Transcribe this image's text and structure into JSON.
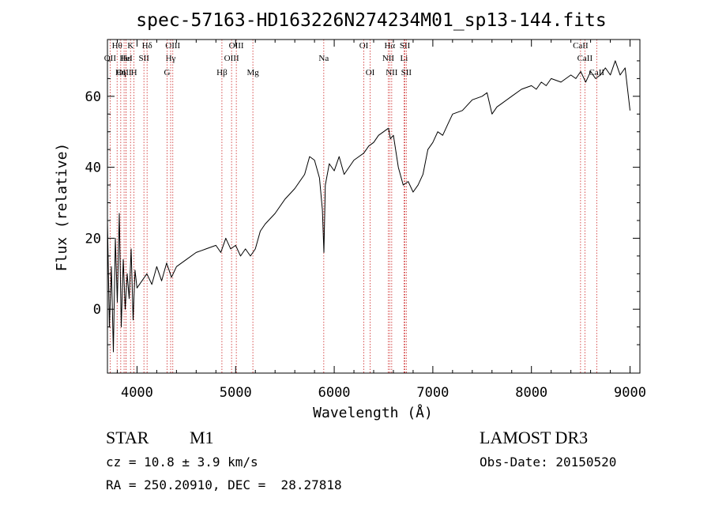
{
  "chart_data": {
    "type": "line",
    "title": "spec-57163-HD163226N274234M01_sp13-144.fits",
    "xlabel": "Wavelength (Å)",
    "ylabel": "Flux (relative)",
    "xlim": [
      3700,
      9100
    ],
    "ylim": [
      -18,
      76
    ],
    "x_ticks": [
      4000,
      5000,
      6000,
      7000,
      8000,
      9000
    ],
    "y_ticks": [
      0,
      20,
      40,
      60
    ],
    "grid": false,
    "series": [
      {
        "x": [
          3700,
          3720,
          3740,
          3760,
          3780,
          3800,
          3820,
          3840,
          3860,
          3880,
          3900,
          3920,
          3940,
          3960,
          3980,
          4000,
          4050,
          4100,
          4150,
          4200,
          4250,
          4300,
          4350,
          4400,
          4500,
          4600,
          4700,
          4800,
          4850,
          4900,
          4950,
          5000,
          5050,
          5100,
          5150,
          5200,
          5250,
          5300,
          5400,
          5500,
          5600,
          5700,
          5750,
          5800,
          5850,
          5880,
          5895,
          5910,
          5950,
          6000,
          6050,
          6100,
          6150,
          6200,
          6250,
          6300,
          6350,
          6400,
          6450,
          6500,
          6550,
          6570,
          6600,
          6650,
          6700,
          6750,
          6800,
          6850,
          6900,
          6950,
          7000,
          7050,
          7100,
          7150,
          7200,
          7300,
          7400,
          7500,
          7550,
          7600,
          7650,
          7700,
          7800,
          7900,
          8000,
          8050,
          8100,
          8150,
          8200,
          8300,
          8400,
          8450,
          8500,
          8550,
          8600,
          8650,
          8700,
          8750,
          8800,
          8850,
          8900,
          8950,
          9000
        ],
        "y": [
          25,
          -5,
          12,
          -12,
          20,
          2,
          27,
          -5,
          14,
          0,
          10,
          3,
          17,
          -3,
          11,
          6,
          8,
          10,
          7,
          12,
          8,
          13,
          9,
          12,
          14,
          16,
          17,
          18,
          16,
          20,
          17,
          18,
          15,
          17,
          15,
          17,
          22,
          24,
          27,
          31,
          34,
          38,
          43,
          42,
          37,
          28,
          16,
          35,
          41,
          39,
          43,
          38,
          40,
          42,
          43,
          44,
          46,
          47,
          49,
          50,
          51,
          48,
          49,
          40,
          35,
          36,
          33,
          35,
          38,
          45,
          47,
          50,
          49,
          52,
          55,
          56,
          59,
          60,
          61,
          55,
          57,
          58,
          60,
          62,
          63,
          62,
          64,
          63,
          65,
          64,
          66,
          65,
          67,
          64,
          67,
          65,
          66,
          68,
          66,
          70,
          66,
          68,
          56
        ]
      }
    ],
    "line_markers": [
      {
        "label": "Hθ",
        "x": 3798,
        "row": 1
      },
      {
        "label": "OII",
        "x": 3727,
        "row": 2
      },
      {
        "label": "OIII",
        "x": 3869,
        "row": 3
      },
      {
        "label": "Hε",
        "x": 3889,
        "row": 2
      },
      {
        "label": "K",
        "x": 3934,
        "row": 1
      },
      {
        "label": "Hη",
        "x": 3835,
        "row": 3
      },
      {
        "label": "HeI",
        "x": 3889,
        "row": 2
      },
      {
        "label": "SII",
        "x": 4070,
        "row": 2
      },
      {
        "label": "H",
        "x": 3969,
        "row": 3
      },
      {
        "label": "Hδ",
        "x": 4102,
        "row": 1
      },
      {
        "label": "OIII",
        "x": 4363,
        "row": 1
      },
      {
        "label": "Hγ",
        "x": 4341,
        "row": 2
      },
      {
        "label": "G",
        "x": 4305,
        "row": 3
      },
      {
        "label": "OIII",
        "x": 5007,
        "row": 1
      },
      {
        "label": "OIII",
        "x": 4959,
        "row": 2
      },
      {
        "label": "Hβ",
        "x": 4861,
        "row": 3
      },
      {
        "label": "Mg",
        "x": 5175,
        "row": 3
      },
      {
        "label": "Na",
        "x": 5894,
        "row": 2
      },
      {
        "label": "OI",
        "x": 6300,
        "row": 1
      },
      {
        "label": "OI",
        "x": 6364,
        "row": 3
      },
      {
        "label": "Hα",
        "x": 6563,
        "row": 1
      },
      {
        "label": "SII",
        "x": 6717,
        "row": 1
      },
      {
        "label": "NII",
        "x": 6548,
        "row": 2
      },
      {
        "label": "Li",
        "x": 6708,
        "row": 2
      },
      {
        "label": "NII",
        "x": 6583,
        "row": 3
      },
      {
        "label": "SII",
        "x": 6731,
        "row": 3
      },
      {
        "label": "CaII",
        "x": 8498,
        "row": 1
      },
      {
        "label": "CaII",
        "x": 8542,
        "row": 2
      },
      {
        "label": "CaII",
        "x": 8662,
        "row": 3
      }
    ]
  },
  "info": {
    "object_class": "STAR",
    "subclass": "M1",
    "survey": "LAMOST DR3",
    "redshift_line": "cz = 10.8 ± 3.9 km/s",
    "obs_date": "Obs-Date: 20150520",
    "coords": "RA = 250.20910, DEC =  28.27818"
  },
  "colors": {
    "spectrum": "#000000",
    "marker_line": "#cc2222",
    "background": "#ffffff"
  }
}
